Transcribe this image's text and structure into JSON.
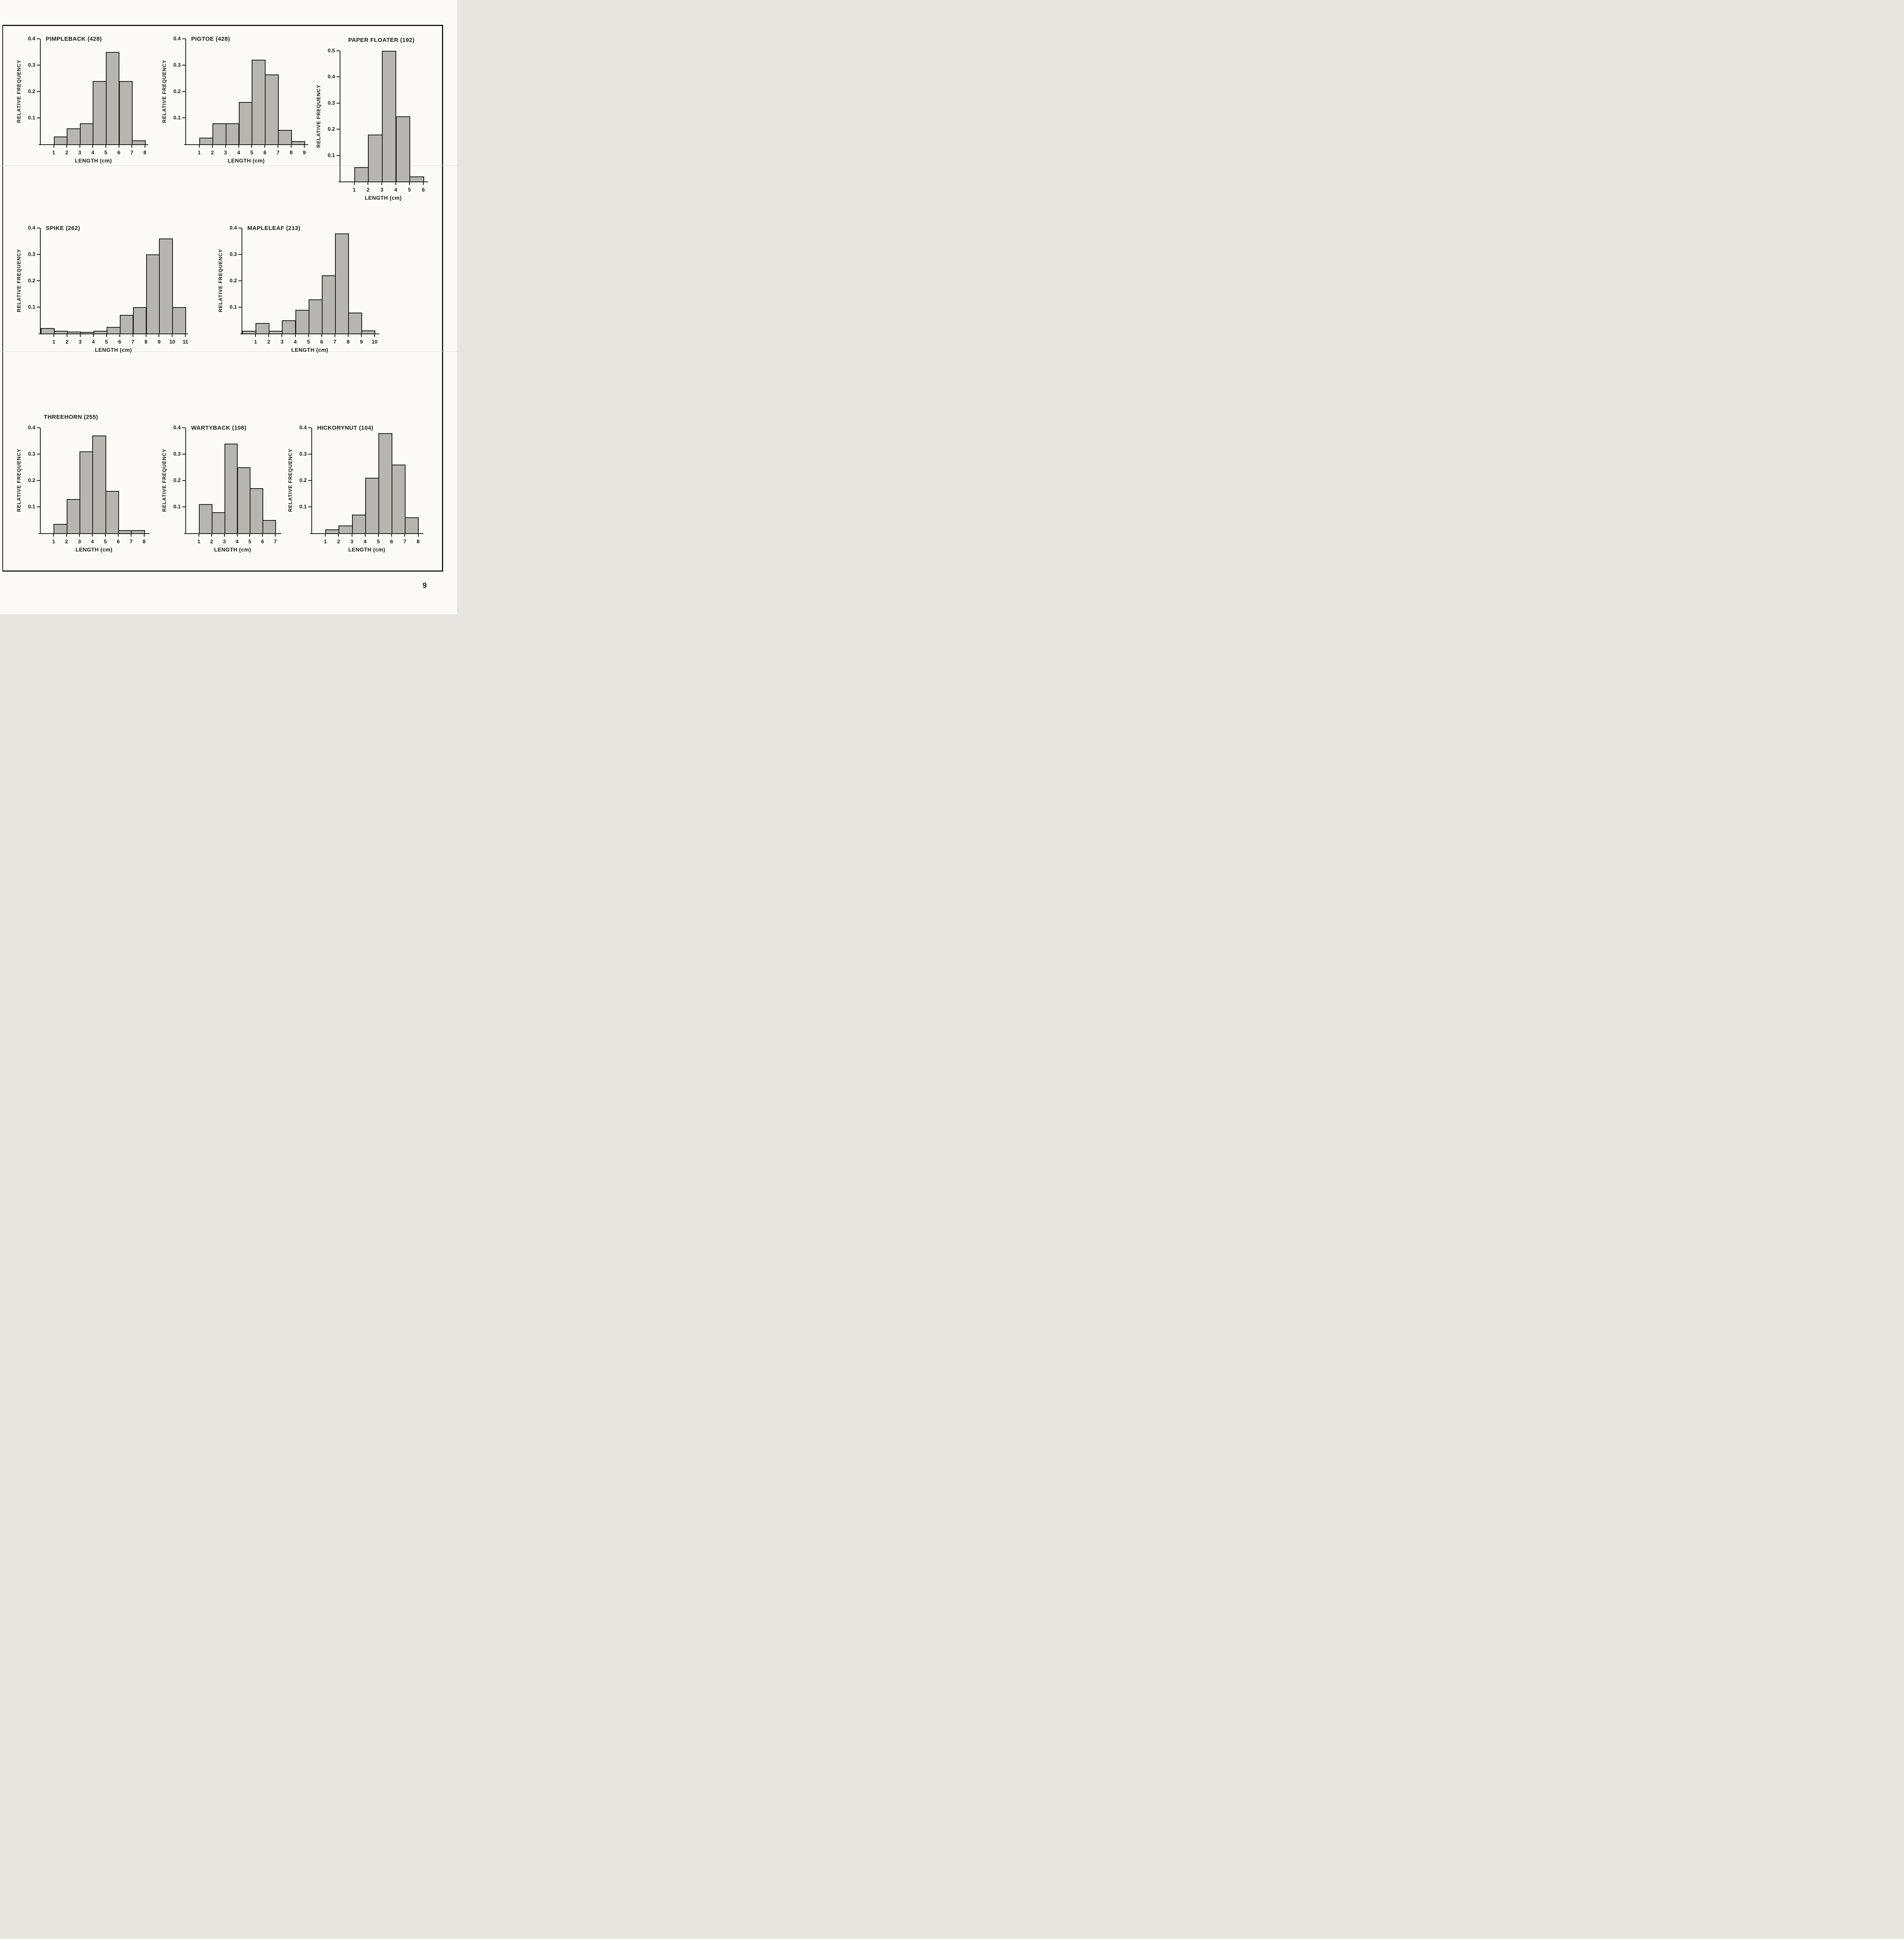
{
  "page": {
    "number": "9"
  },
  "colors": {
    "ink": "#1a1a1a",
    "bar_fill": "#b7b5b0",
    "paper": "#fbfaf6"
  },
  "chart_data": [
    {
      "type": "bar",
      "title": "PIMPLEBACK (428)",
      "xlabel": "LENGTH (cm)",
      "ylabel": "RELATIVE FREQUENCY",
      "ylim": [
        0,
        0.4
      ],
      "y_ticks": [
        0.1,
        0.2,
        0.3,
        0.4
      ],
      "x_ticks": [
        1,
        2,
        3,
        4,
        5,
        6,
        7,
        8
      ],
      "xlim": [
        0,
        8.1
      ],
      "grid": false,
      "bin_edges": [
        1,
        2,
        3,
        4,
        5,
        6,
        7,
        8
      ],
      "values": [
        0.03,
        0.06,
        0.08,
        0.24,
        0.35,
        0.24,
        0.015
      ]
    },
    {
      "type": "bar",
      "title": "PIGTOE (428)",
      "xlabel": "LENGTH (cm)",
      "ylabel": "RELATIVE FREQUENCY",
      "ylim": [
        0,
        0.4
      ],
      "y_ticks": [
        0.1,
        0.2,
        0.3,
        0.4
      ],
      "x_ticks": [
        1,
        2,
        3,
        4,
        5,
        6,
        7,
        8,
        9
      ],
      "xlim": [
        0,
        9.15
      ],
      "grid": false,
      "bin_edges": [
        1,
        2,
        3,
        4,
        5,
        6,
        7,
        8,
        9
      ],
      "values": [
        0.025,
        0.08,
        0.08,
        0.16,
        0.32,
        0.265,
        0.055,
        0.012
      ]
    },
    {
      "type": "bar",
      "title": "PAPER FLOATER (192)",
      "xlabel": "LENGTH (cm)",
      "ylabel": "RELATIVE FREQUENCY",
      "ylim": [
        0,
        0.5
      ],
      "y_ticks": [
        0.1,
        0.2,
        0.3,
        0.4,
        0.5
      ],
      "x_ticks": [
        1,
        2,
        3,
        4,
        5,
        6
      ],
      "xlim": [
        0,
        6.2
      ],
      "grid": false,
      "bin_edges": [
        1,
        2,
        3,
        4,
        5,
        6
      ],
      "values": [
        0.055,
        0.18,
        0.5,
        0.25,
        0.02
      ]
    },
    {
      "type": "bar",
      "title": "SPIKE (262)",
      "xlabel": "LENGTH (cm)",
      "ylabel": "RELATIVE FREQUENCY",
      "ylim": [
        0,
        0.4
      ],
      "y_ticks": [
        0.1,
        0.2,
        0.3,
        0.4
      ],
      "x_ticks": [
        1,
        2,
        3,
        4,
        5,
        6,
        7,
        8,
        9,
        10,
        11
      ],
      "xlim": [
        0,
        11.05
      ],
      "grid": false,
      "bin_edges": [
        0,
        1,
        2,
        3,
        4,
        5,
        6,
        7,
        8,
        9,
        10,
        11
      ],
      "values": [
        0.02,
        0.01,
        0.008,
        0.006,
        0.01,
        0.025,
        0.07,
        0.1,
        0.3,
        0.36,
        0.1
      ]
    },
    {
      "type": "bar",
      "title": "MAPLELEAF (213)",
      "xlabel": "LENGTH (cm)",
      "ylabel": "RELATIVE FREQUENCY",
      "ylim": [
        0,
        0.4
      ],
      "y_ticks": [
        0.1,
        0.2,
        0.3,
        0.4
      ],
      "x_ticks": [
        1,
        2,
        3,
        4,
        5,
        6,
        7,
        8,
        9,
        10
      ],
      "xlim": [
        0,
        10.2
      ],
      "grid": false,
      "bin_edges": [
        0,
        1,
        2,
        3,
        4,
        5,
        6,
        7,
        8,
        9,
        10
      ],
      "values": [
        0.01,
        0.04,
        0.01,
        0.05,
        0.09,
        0.13,
        0.22,
        0.38,
        0.08,
        0.012
      ]
    },
    {
      "type": "bar",
      "title": "THREEHORN (255)",
      "xlabel": "LENGTH (cm)",
      "ylabel": "RELATIVE FREQUENCY",
      "ylim": [
        0,
        0.4
      ],
      "y_ticks": [
        0.1,
        0.2,
        0.3,
        0.4
      ],
      "x_ticks": [
        1,
        2,
        3,
        4,
        5,
        6,
        7,
        8
      ],
      "xlim": [
        0,
        8.25
      ],
      "grid": false,
      "bin_edges": [
        1,
        2,
        3,
        4,
        5,
        6,
        7,
        8
      ],
      "values": [
        0.035,
        0.13,
        0.31,
        0.37,
        0.16,
        0.012,
        0.012
      ]
    },
    {
      "type": "bar",
      "title": "WARTYBACK (108)",
      "xlabel": "LENGTH (cm)",
      "ylabel": "RELATIVE FREQUENCY",
      "ylim": [
        0,
        0.4
      ],
      "y_ticks": [
        0.1,
        0.2,
        0.3,
        0.4
      ],
      "x_ticks": [
        1,
        2,
        3,
        4,
        5,
        6,
        7
      ],
      "xlim": [
        0,
        7.3
      ],
      "grid": false,
      "bin_edges": [
        1,
        2,
        3,
        4,
        5,
        6,
        7
      ],
      "values": [
        0.11,
        0.08,
        0.34,
        0.25,
        0.17,
        0.05
      ]
    },
    {
      "type": "bar",
      "title": "HICKORYNUT (104)",
      "xlabel": "LENGTH (cm)",
      "ylabel": "RELATIVE FREQUENCY",
      "ylim": [
        0,
        0.4
      ],
      "y_ticks": [
        0.1,
        0.2,
        0.3,
        0.4
      ],
      "x_ticks": [
        1,
        2,
        3,
        4,
        5,
        6,
        7,
        8
      ],
      "xlim": [
        0,
        8.25
      ],
      "grid": false,
      "bin_edges": [
        1,
        2,
        3,
        4,
        5,
        6,
        7,
        8
      ],
      "values": [
        0.015,
        0.03,
        0.07,
        0.21,
        0.38,
        0.26,
        0.06
      ]
    }
  ]
}
